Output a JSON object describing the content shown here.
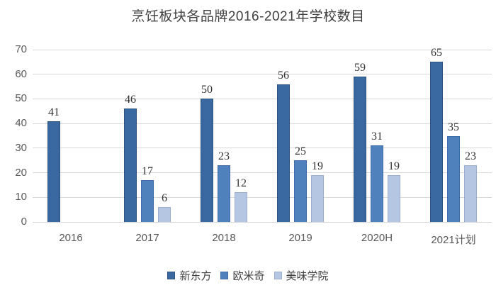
{
  "chart_data": {
    "type": "bar",
    "title": "烹饪板块各品牌2016-2021年学校数目",
    "categories": [
      "2016",
      "2017",
      "2018",
      "2019",
      "2020H",
      "2021计划"
    ],
    "series": [
      {
        "name": "新东方",
        "color": "#3a68a0",
        "border": "#2d5380",
        "values": [
          41,
          46,
          50,
          56,
          59,
          65
        ]
      },
      {
        "name": "欧米奇",
        "color": "#4f81bd",
        "border": "#3e6ca8",
        "values": [
          null,
          17,
          23,
          25,
          31,
          35
        ]
      },
      {
        "name": "美味学院",
        "color": "#b4c6e2",
        "border": "#9badd0",
        "values": [
          null,
          6,
          12,
          19,
          19,
          23
        ]
      }
    ],
    "ylim": [
      0,
      70
    ],
    "yticks": [
      0,
      10,
      20,
      30,
      40,
      50,
      60,
      70
    ],
    "xlabel": "",
    "ylabel": "",
    "grid": "horizontal",
    "gridline_color": "#d9d9d9",
    "axis_text_color": "#595959",
    "data_labels": true,
    "legend_position": "bottom"
  }
}
